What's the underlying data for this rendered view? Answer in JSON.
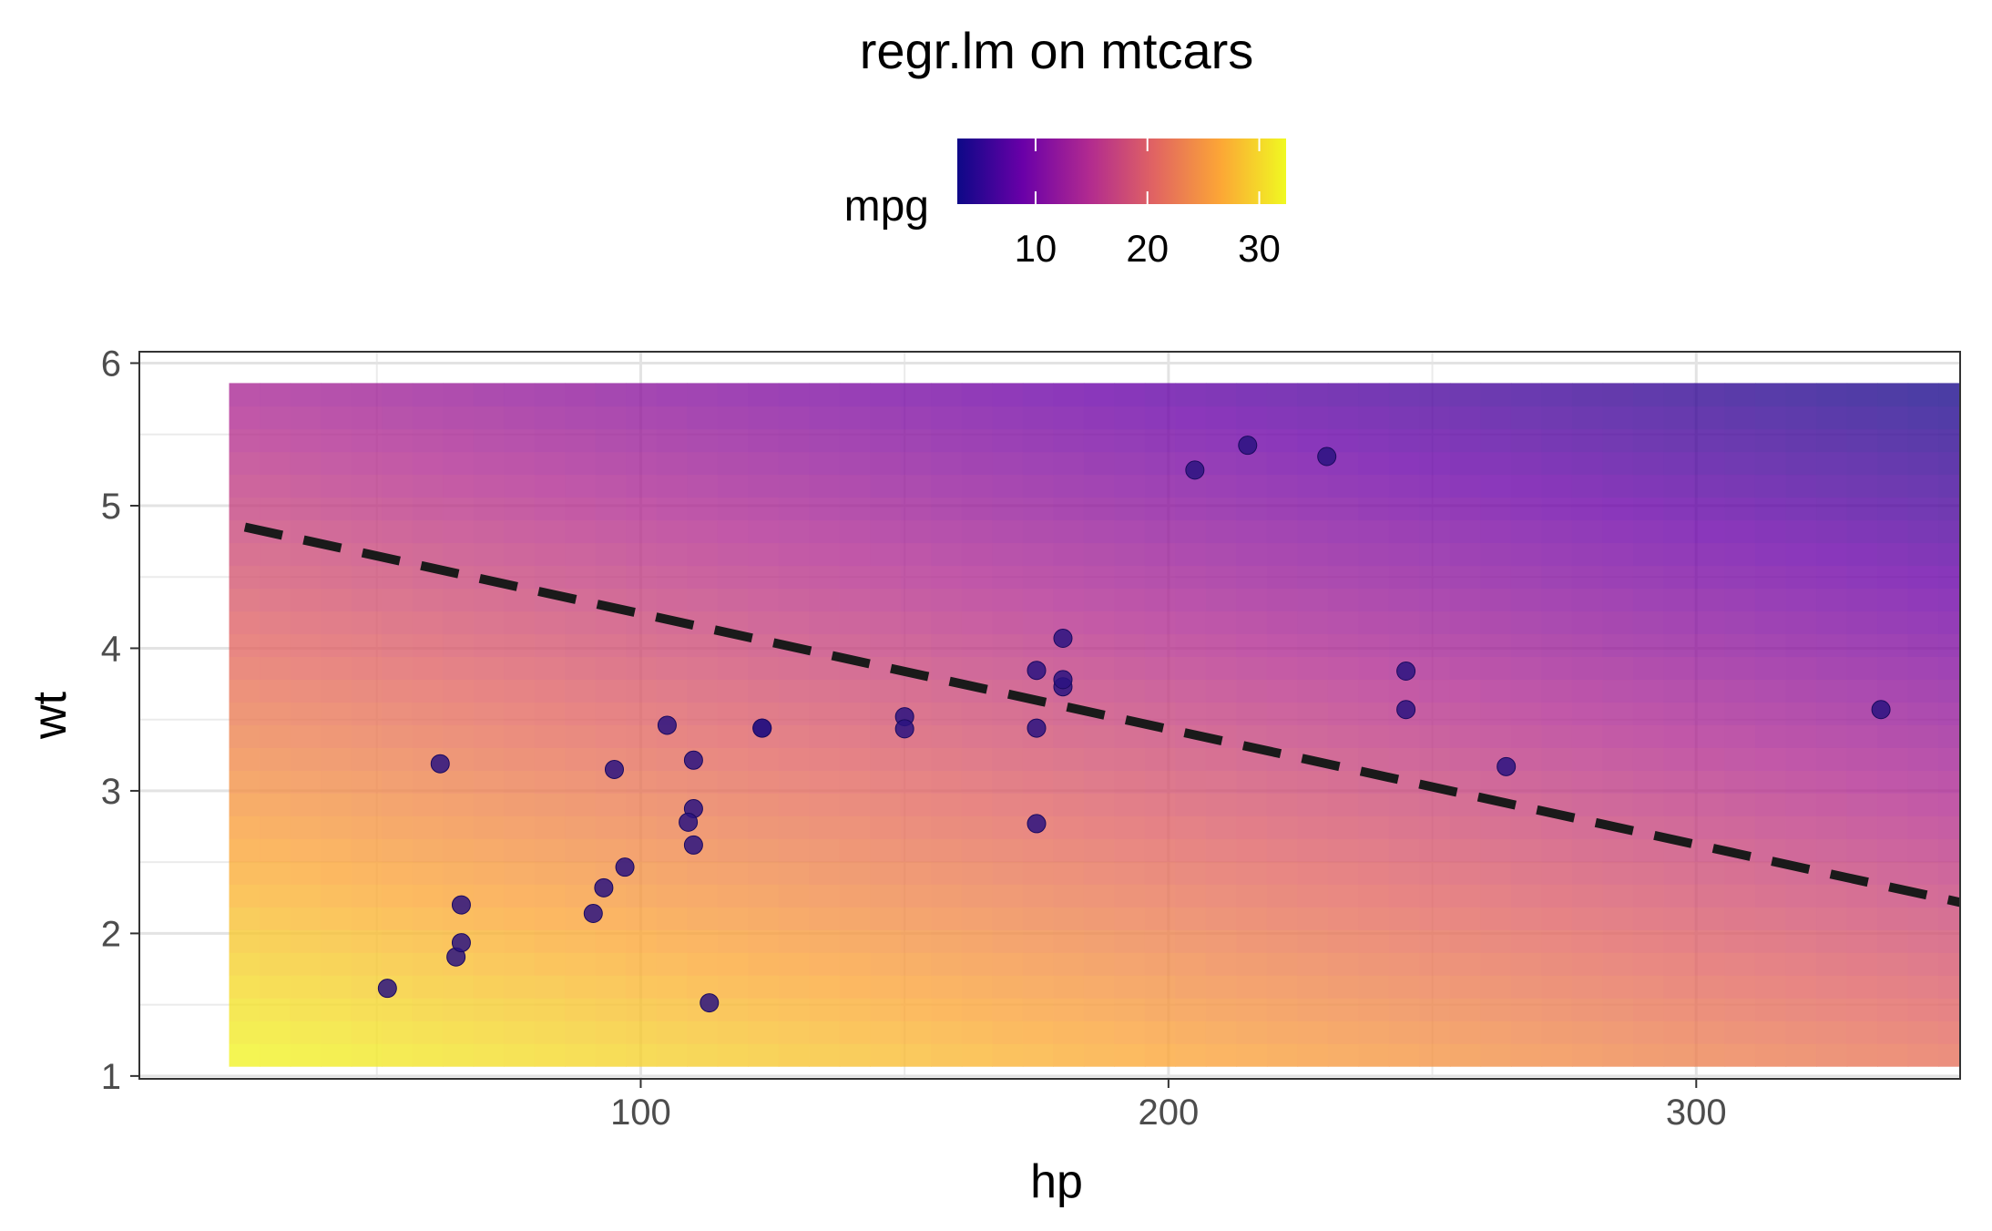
{
  "chart_data": {
    "type": "scatter",
    "title": "regr.lm on mtcars",
    "xlabel": "hp",
    "ylabel": "wt",
    "xlim": [
      5,
      350
    ],
    "ylim": [
      0.98,
      6.08
    ],
    "x_ticks": [
      100,
      200,
      300
    ],
    "y_ticks": [
      1,
      2,
      3,
      4,
      5,
      6
    ],
    "grid": true,
    "legend": {
      "title": "mpg",
      "position": "top",
      "type": "colorbar",
      "range": [
        3,
        32.4
      ],
      "ticks": [
        10,
        20,
        30
      ],
      "palette": [
        "#0d0887",
        "#6a00a8",
        "#b12a90",
        "#e16462",
        "#fca636",
        "#f0f921"
      ]
    },
    "prediction_surface": {
      "x_range": [
        22,
        369
      ],
      "y_range": [
        1.07,
        5.86
      ],
      "intercept": 37.22727,
      "hp_coef": -0.03177,
      "wt_coef": -3.87783,
      "opacity": 0.78
    },
    "decision_line": {
      "style": "dashed",
      "color": "#1a1a1a",
      "points": [
        {
          "x": 25,
          "y": 4.85
        },
        {
          "x": 367,
          "y": 2.08
        }
      ]
    },
    "points": [
      {
        "x": 110,
        "y": 2.62
      },
      {
        "x": 110,
        "y": 2.875
      },
      {
        "x": 93,
        "y": 2.32
      },
      {
        "x": 110,
        "y": 3.215
      },
      {
        "x": 175,
        "y": 3.44
      },
      {
        "x": 105,
        "y": 3.46
      },
      {
        "x": 245,
        "y": 3.57
      },
      {
        "x": 62,
        "y": 3.19
      },
      {
        "x": 95,
        "y": 3.15
      },
      {
        "x": 123,
        "y": 3.44
      },
      {
        "x": 123,
        "y": 3.44
      },
      {
        "x": 180,
        "y": 4.07
      },
      {
        "x": 180,
        "y": 3.73
      },
      {
        "x": 180,
        "y": 3.78
      },
      {
        "x": 205,
        "y": 5.25
      },
      {
        "x": 215,
        "y": 5.424
      },
      {
        "x": 230,
        "y": 5.345
      },
      {
        "x": 66,
        "y": 2.2
      },
      {
        "x": 52,
        "y": 1.615
      },
      {
        "x": 65,
        "y": 1.835
      },
      {
        "x": 97,
        "y": 2.465
      },
      {
        "x": 150,
        "y": 3.52
      },
      {
        "x": 150,
        "y": 3.435
      },
      {
        "x": 245,
        "y": 3.84
      },
      {
        "x": 175,
        "y": 3.845
      },
      {
        "x": 66,
        "y": 1.935
      },
      {
        "x": 91,
        "y": 2.14
      },
      {
        "x": 113,
        "y": 1.513
      },
      {
        "x": 264,
        "y": 3.17
      },
      {
        "x": 175,
        "y": 2.77
      },
      {
        "x": 335,
        "y": 3.57
      },
      {
        "x": 109,
        "y": 2.78
      }
    ],
    "point_color": "#2a1380"
  }
}
